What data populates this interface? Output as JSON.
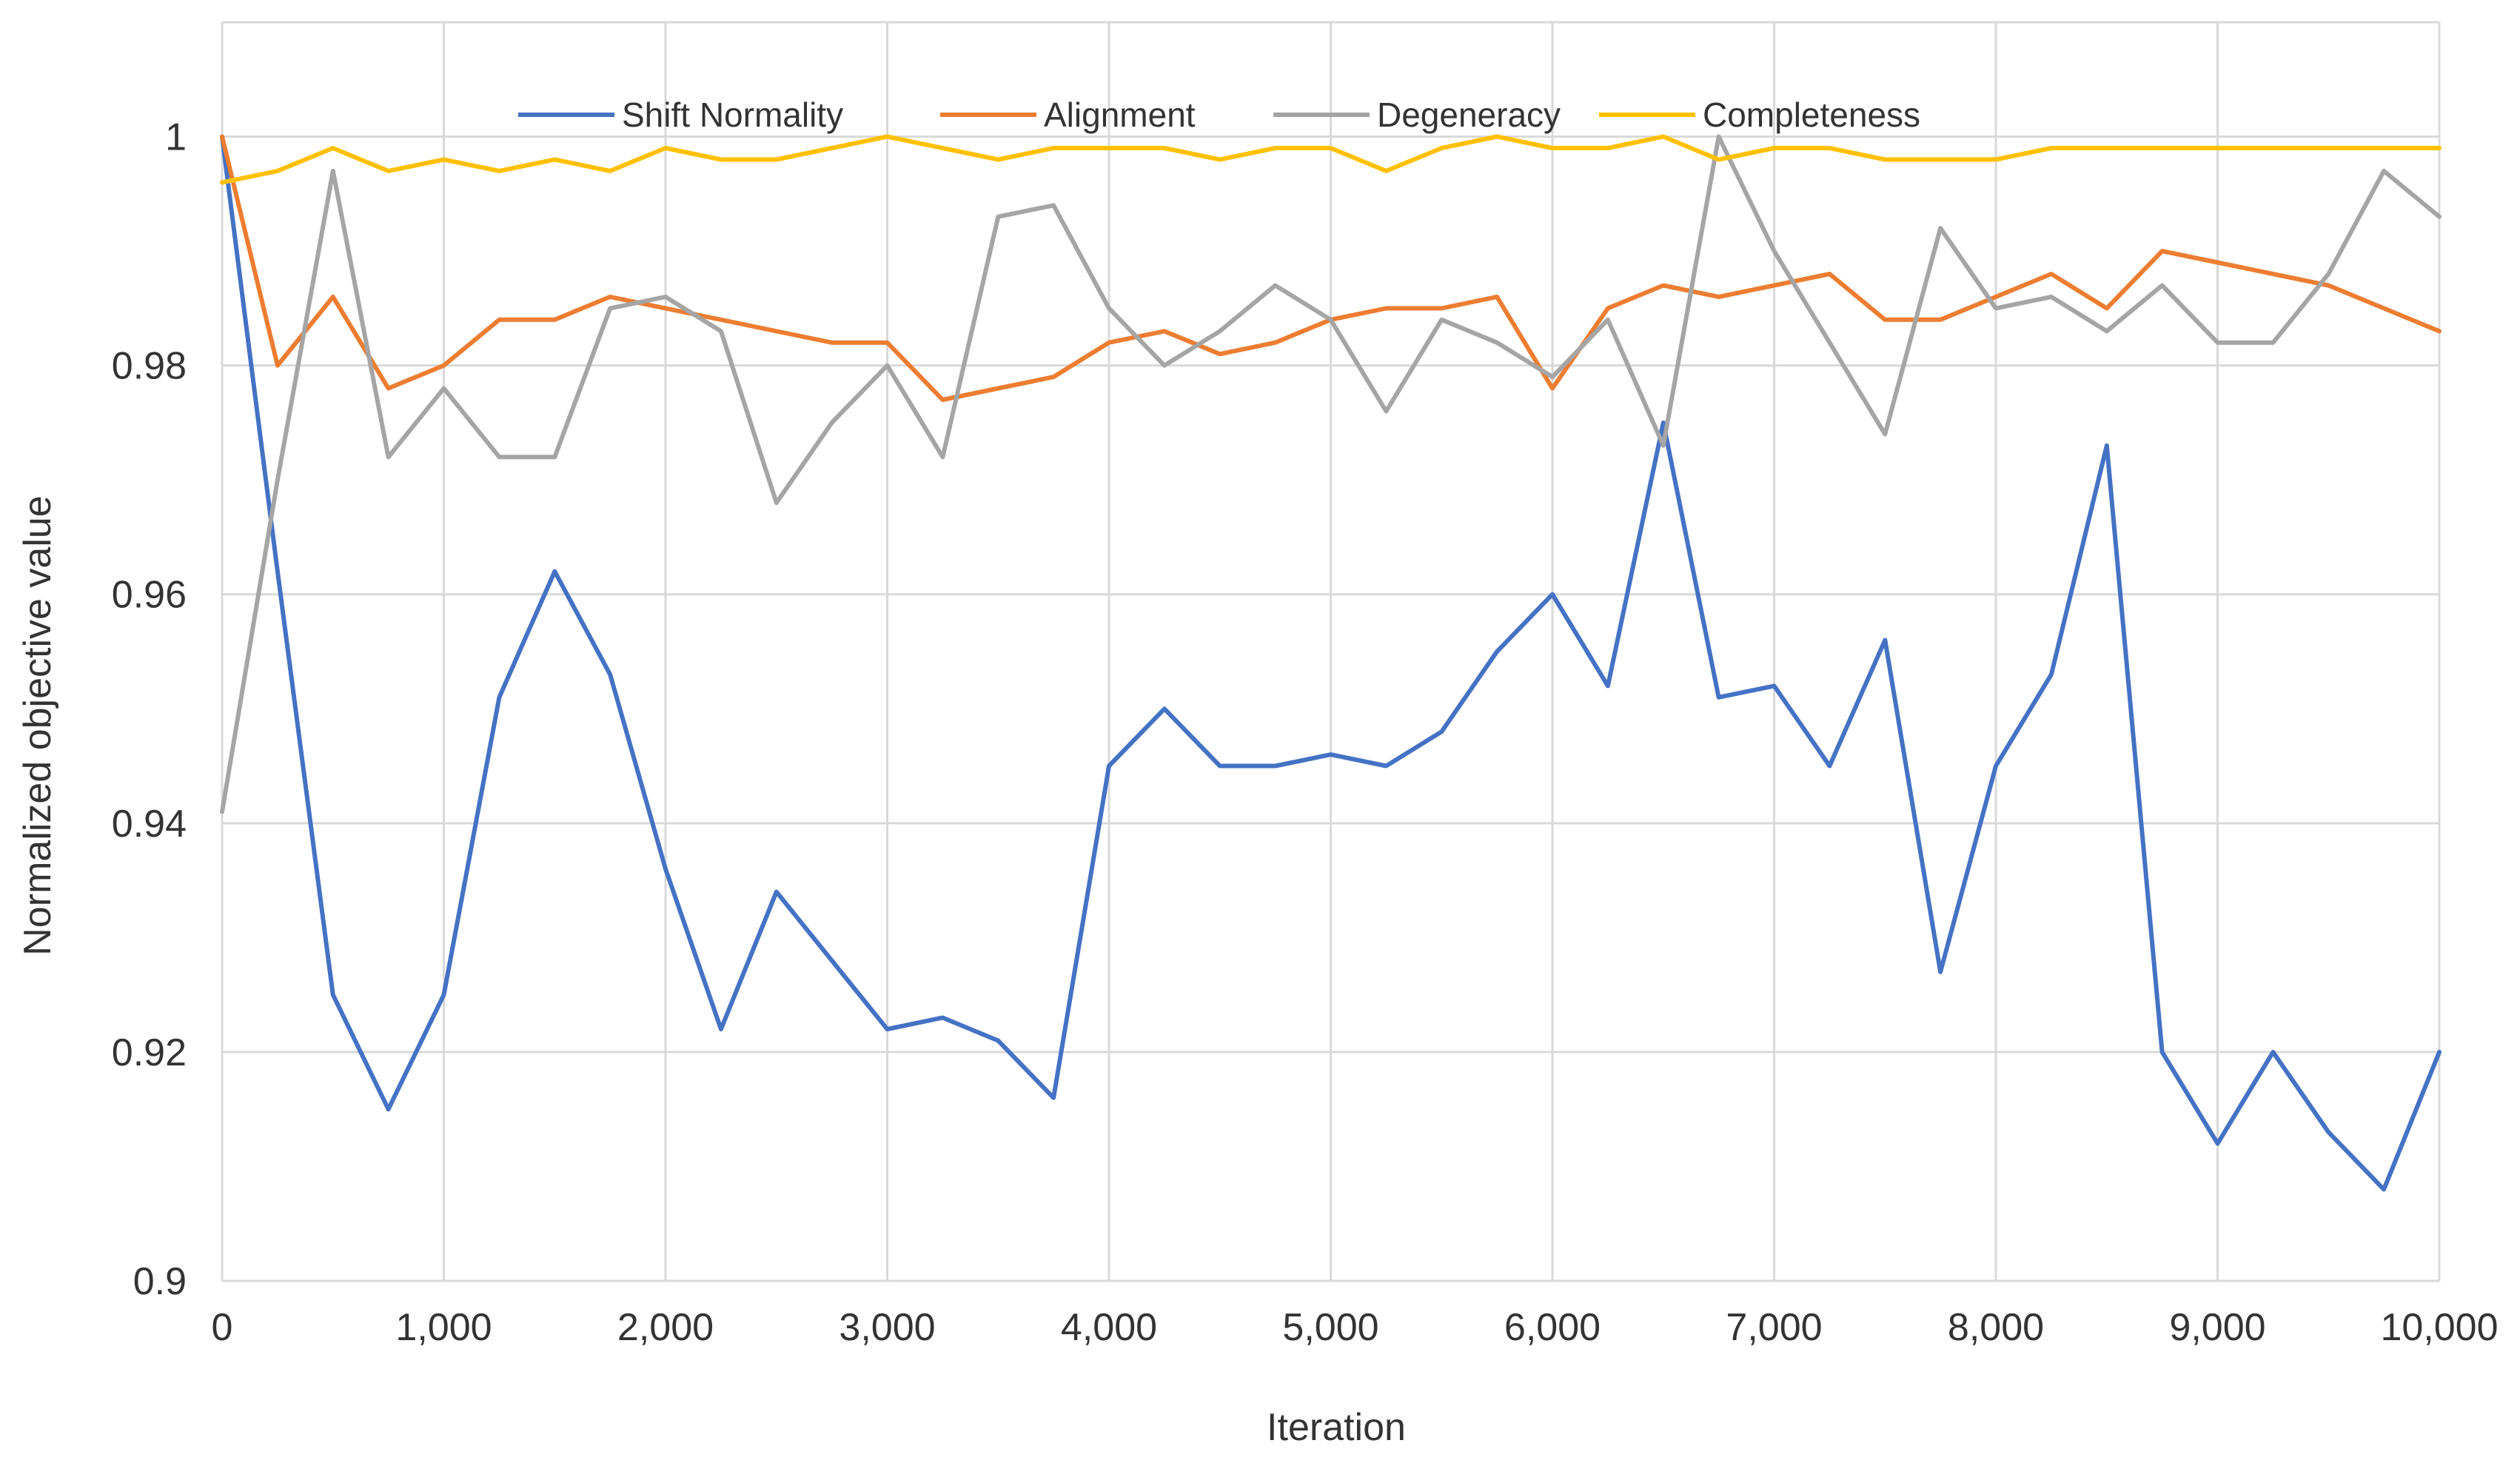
{
  "chart_data": {
    "type": "line",
    "title": "",
    "xlabel": "Iteration",
    "ylabel": "Normalized objective value",
    "xlim": [
      0,
      10000
    ],
    "ylim": [
      0.9,
      1.01
    ],
    "grid": true,
    "legend_position": "top",
    "x_ticks": [
      0,
      1000,
      2000,
      3000,
      4000,
      5000,
      6000,
      7000,
      8000,
      9000,
      10000
    ],
    "x_tick_labels": [
      "0",
      "1,000",
      "2,000",
      "3,000",
      "4,000",
      "5,000",
      "6,000",
      "7,000",
      "8,000",
      "9,000",
      "10,000"
    ],
    "y_ticks": [
      0.9,
      0.92,
      0.94,
      0.96,
      0.98,
      1.0
    ],
    "y_tick_labels": [
      "0.9",
      "0.92",
      "0.94",
      "0.96",
      "0.98",
      "1"
    ],
    "x": [
      0,
      250,
      500,
      750,
      1000,
      1250,
      1500,
      1750,
      2000,
      2250,
      2500,
      2750,
      3000,
      3250,
      3500,
      3750,
      4000,
      4250,
      4500,
      4750,
      5000,
      5250,
      5500,
      5750,
      6000,
      6250,
      6500,
      6750,
      7000,
      7250,
      7500,
      7750,
      8000,
      8250,
      8500,
      8750,
      9000,
      9250,
      9500,
      9750,
      10000
    ],
    "series": [
      {
        "name": "Shift Normality",
        "color": "#4472C4",
        "values": [
          1.0,
          0.962,
          0.925,
          0.915,
          0.925,
          0.951,
          0.962,
          0.953,
          0.936,
          0.922,
          0.934,
          0.928,
          0.922,
          0.923,
          0.921,
          0.916,
          0.945,
          0.95,
          0.945,
          0.945,
          0.946,
          0.945,
          0.948,
          0.955,
          0.96,
          0.952,
          0.975,
          0.951,
          0.952,
          0.945,
          0.956,
          0.927,
          0.945,
          0.953,
          0.973,
          0.92,
          0.912,
          0.92,
          0.913,
          0.908,
          0.92
        ]
      },
      {
        "name": "Alignment",
        "color": "#ED7D31",
        "values": [
          1.0,
          0.98,
          0.986,
          0.978,
          0.98,
          0.984,
          0.984,
          0.986,
          0.985,
          0.984,
          0.983,
          0.982,
          0.982,
          0.977,
          0.978,
          0.979,
          0.982,
          0.983,
          0.981,
          0.982,
          0.984,
          0.985,
          0.985,
          0.986,
          0.978,
          0.985,
          0.987,
          0.986,
          0.987,
          0.988,
          0.984,
          0.984,
          0.986,
          0.988,
          0.985,
          0.99,
          0.989,
          0.988,
          0.987,
          0.985,
          0.983
        ]
      },
      {
        "name": "Degeneracy",
        "color": "#A5A5A5",
        "values": [
          0.941,
          0.97,
          0.997,
          0.972,
          0.978,
          0.972,
          0.972,
          0.985,
          0.986,
          0.983,
          0.968,
          0.975,
          0.98,
          0.972,
          0.993,
          0.994,
          0.985,
          0.98,
          0.983,
          0.987,
          0.984,
          0.976,
          0.984,
          0.982,
          0.979,
          0.984,
          0.973,
          1.0,
          0.99,
          0.982,
          0.974,
          0.992,
          0.985,
          0.986,
          0.983,
          0.987,
          0.982,
          0.982,
          0.988,
          0.997,
          0.993
        ]
      },
      {
        "name": "Completeness",
        "color": "#FFC000",
        "values": [
          0.996,
          0.997,
          0.999,
          0.997,
          0.998,
          0.997,
          0.998,
          0.997,
          0.999,
          0.998,
          0.998,
          0.999,
          1.0,
          0.999,
          0.998,
          0.999,
          0.999,
          0.999,
          0.998,
          0.999,
          0.999,
          0.997,
          0.999,
          1.0,
          0.999,
          0.999,
          1.0,
          0.998,
          0.999,
          0.999,
          0.998,
          0.998,
          0.998,
          0.999,
          0.999,
          0.999,
          0.999,
          0.999,
          0.999,
          0.999,
          0.999
        ]
      }
    ]
  }
}
